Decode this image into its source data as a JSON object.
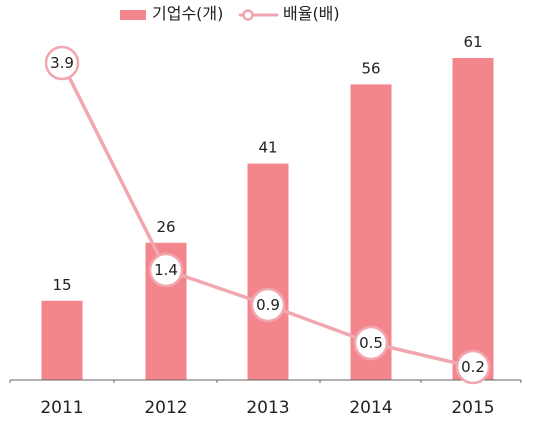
{
  "chart_data": {
    "type": "bar",
    "categories": [
      "2011",
      "2012",
      "2013",
      "2014",
      "2015"
    ],
    "series": [
      {
        "name": "기업수(개)",
        "type": "bar",
        "values": [
          15,
          26,
          41,
          56,
          61
        ],
        "color": "#f3868c"
      },
      {
        "name": "배율(배)",
        "type": "line",
        "values": [
          3.9,
          1.4,
          0.9,
          0.5,
          0.2
        ],
        "color": "#f1a7b0"
      }
    ],
    "title": "",
    "xlabel": "",
    "ylabel": "",
    "legend_position": "top",
    "grid": false,
    "bar_ylim": [
      0,
      70
    ],
    "line_ylim": [
      0,
      4.2
    ]
  }
}
